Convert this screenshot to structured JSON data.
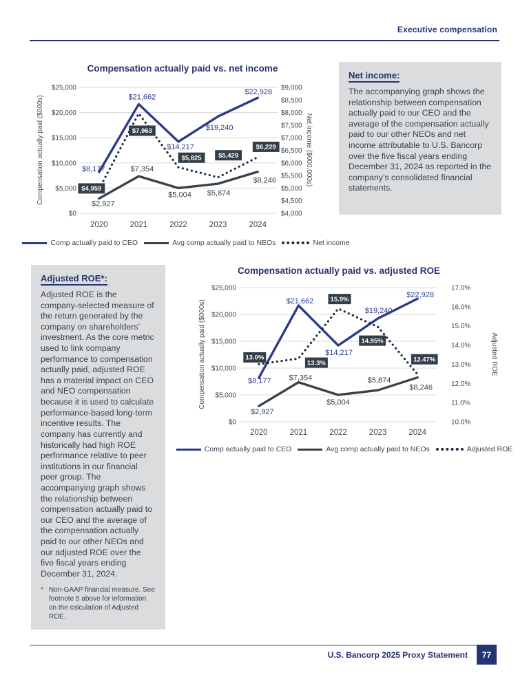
{
  "header": {
    "section_title": "Executive compensation"
  },
  "footer": {
    "statement_title": "U.S. Bancorp 2025 Proxy Statement",
    "page_number": "77"
  },
  "colors": {
    "navy_text": "#273372",
    "ceo_line": "#2c3a8a",
    "neo_line": "#37424c",
    "dotted_line": "#20263c",
    "badge_bg": "#333e48",
    "box_bg": "#dbdcdd",
    "grid": "#d9d9d9",
    "tick_text": "#3e4953",
    "body_text": "#3a4450",
    "footer_rule": "#a8aec7"
  },
  "net_income_box": {
    "heading": "Net income:",
    "body": "The accompanying graph shows the relationship between compensation actually paid to our CEO and the average of the compensation actually paid to our other NEOs and net income attributable to U.S. Bancorp over the five fiscal years ending December 31, 2024 as reported in the company’s consolidated financial statements."
  },
  "adjusted_roe_box": {
    "heading": "Adjusted ROE*:",
    "body": "Adjusted ROE is the company-selected measure of the return generated by the company on shareholders’ investment. As the core metric used to link company performance to compensation actually paid, adjusted ROE has a material impact on CEO and NEO compensation because it is used to calculate performance-based long-term incentive results. The company has currently and historically had high ROE performance relative to peer institutions in our financial peer group. The accompanying graph shows the relationship between compensation actually paid to our CEO and the average of the compensation actually paid to our other NEOs and our adjusted ROE over the five fiscal years ending December 31, 2024.",
    "footnote_marker": "*",
    "footnote": "Non-GAAP financial measure. See footnote 5 above for information on the calculation of Adjusted ROE."
  },
  "chart_data": [
    {
      "type": "line",
      "title": "Compensation actually paid vs. net income",
      "categories": [
        "2020",
        "2021",
        "2022",
        "2023",
        "2024"
      ],
      "grid": "horizontal",
      "legend_position": "bottom",
      "left_axis": {
        "label": "Compensation actually paid ($000s)",
        "range": [
          0,
          25000
        ],
        "ticks": [
          "$25,000",
          "$20,000",
          "$15,000",
          "$10,000",
          "$5,000",
          "$0"
        ]
      },
      "right_axis": {
        "label": "Net income ($000,000s)",
        "range": [
          4000,
          9000
        ],
        "ticks": [
          "$9,000",
          "$8,500",
          "$8,000",
          "$7,500",
          "$7,000",
          "$6,500",
          "$6,000",
          "$5,500",
          "$5,000",
          "$4,500",
          "$4,000"
        ]
      },
      "series": [
        {
          "name": "Comp actually paid to CEO",
          "axis": "left",
          "line": "solid",
          "color": "#2c3a8a",
          "values": [
            8177,
            21662,
            14217,
            19240,
            22928
          ],
          "labels": [
            "$8,177",
            "$21,662",
            "$14,217",
            "$19,240",
            "$22,928"
          ],
          "label_type": "text",
          "label_offsets": [
            [
              -8,
              -1
            ],
            [
              5,
              -7
            ],
            [
              3,
              11
            ],
            [
              2,
              20
            ],
            [
              1,
              -5
            ]
          ]
        },
        {
          "name": "Avg comp actually paid to NEOs",
          "axis": "left",
          "line": "solid",
          "color": "#37424c",
          "values": [
            2927,
            7354,
            5004,
            5874,
            8246
          ],
          "labels": [
            "$2,927",
            "$7,354",
            "$5,004",
            "$5,874",
            "$8,246"
          ],
          "label_type": "text",
          "label_offsets": [
            [
              6,
              11
            ],
            [
              5,
              -7
            ],
            [
              2,
              13
            ],
            [
              1,
              17
            ],
            [
              10,
              16
            ]
          ]
        },
        {
          "name": "Net income",
          "axis": "right",
          "line": "dotted",
          "color": "#20263c",
          "values": [
            4959,
            7963,
            5825,
            5429,
            6229
          ],
          "labels": [
            "$4,959",
            "$7,963",
            "$5,825",
            "$5,429",
            "$6,229"
          ],
          "label_type": "badge",
          "label_offsets": [
            [
              -11,
              -1
            ],
            [
              5,
              25
            ],
            [
              19,
              -14
            ],
            [
              15,
              -32
            ],
            [
              12,
              -15
            ]
          ]
        }
      ]
    },
    {
      "type": "line",
      "title": "Compensation actually paid vs. adjusted ROE",
      "categories": [
        "2020",
        "2021",
        "2022",
        "2023",
        "2024"
      ],
      "grid": "horizontal",
      "legend_position": "bottom",
      "left_axis": {
        "label": "Compensation actually paid ($000s)",
        "range": [
          0,
          25000
        ],
        "ticks": [
          "$25,000",
          "$20,000",
          "$15,000",
          "$10,000",
          "$5,000",
          "$0"
        ]
      },
      "right_axis": {
        "label": "Adjusted ROE",
        "range": [
          10,
          17
        ],
        "ticks": [
          "17.0%",
          "16.0%",
          "15.0%",
          "14.0%",
          "13.0%",
          "12.0%",
          "11.0%",
          "10.0%"
        ]
      },
      "series": [
        {
          "name": "Comp actually paid to CEO",
          "axis": "left",
          "line": "solid",
          "color": "#2c3a8a",
          "values": [
            8177,
            21662,
            14217,
            19240,
            22928
          ],
          "labels": [
            "$8,177",
            "$21,662",
            "$14,217",
            "$19,240",
            "$22,928"
          ],
          "label_type": "text",
          "label_offsets": [
            [
              1,
              8
            ],
            [
              2,
              -3
            ],
            [
              1,
              14
            ],
            [
              1,
              -8
            ],
            [
              4,
              -2
            ]
          ]
        },
        {
          "name": "Avg comp actually paid to NEOs",
          "axis": "left",
          "line": "solid",
          "color": "#37424c",
          "values": [
            2927,
            7354,
            5004,
            5874,
            8246
          ],
          "labels": [
            "$2,927",
            "$7,354",
            "$5,004",
            "$5,874",
            "$8,246"
          ],
          "label_type": "text",
          "label_offsets": [
            [
              5,
              12
            ],
            [
              3,
              -3
            ],
            [
              0,
              14
            ],
            [
              2,
              -11
            ],
            [
              5,
              18
            ]
          ]
        },
        {
          "name": "Adjusted ROE",
          "axis": "right",
          "line": "dotted",
          "color": "#20263c",
          "values": [
            13.0,
            13.3,
            15.9,
            14.95,
            12.47
          ],
          "labels": [
            "13.0%",
            "13.3%",
            "15.9%",
            "14.95%",
            "12.47%"
          ],
          "label_type": "badge",
          "label_offsets": [
            [
              -6,
              -10
            ],
            [
              26,
              6
            ],
            [
              2,
              -14
            ],
            [
              -8,
              20
            ],
            [
              10,
              -22
            ]
          ]
        }
      ]
    }
  ]
}
